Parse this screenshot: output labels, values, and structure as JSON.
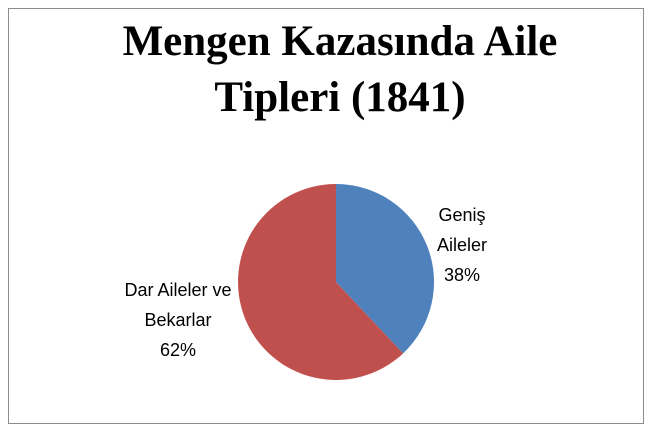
{
  "chart_data": {
    "type": "pie",
    "title": "Mengen Kazasında Aile Tipleri (1841)",
    "categories": [
      "Geniş Aileler",
      "Dar Aileler ve Bekarlar"
    ],
    "values": [
      38,
      62
    ],
    "value_labels": [
      "38%",
      "62%"
    ],
    "colors": [
      "#4f81bd",
      "#c0504d"
    ]
  }
}
